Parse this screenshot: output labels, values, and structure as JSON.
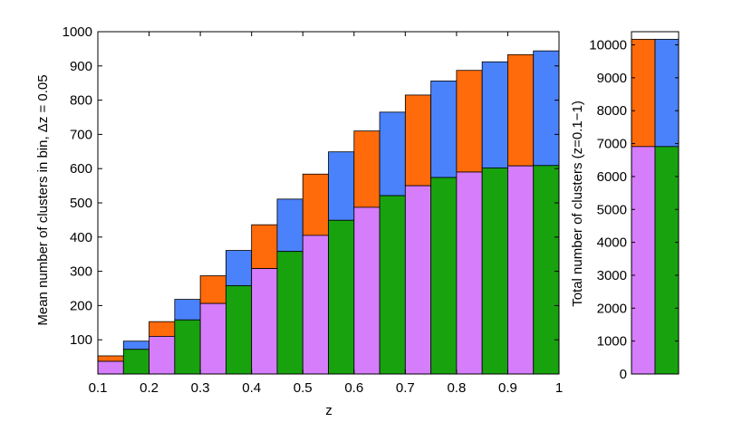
{
  "colors": {
    "violet": "#d57dfa",
    "green": "#18a20e",
    "orange": "#ff6a0a",
    "blue": "#4a82fb"
  },
  "chart_data": [
    {
      "type": "bar",
      "stacked": true,
      "xlabel": "z",
      "ylabel": "Mean number of clusters in bin, Δz = 0.05",
      "xlim": [
        0.1,
        1.0
      ],
      "ylim": [
        0,
        1000
      ],
      "xticks": [
        "0.1",
        "0.2",
        "0.3",
        "0.4",
        "0.5",
        "0.6",
        "0.7",
        "0.8",
        "0.9",
        "1"
      ],
      "yticks": [
        "100",
        "200",
        "300",
        "400",
        "500",
        "600",
        "700",
        "800",
        "900",
        "1000"
      ],
      "bin_width": 0.05,
      "bins": [
        {
          "x0": 0.1,
          "x1": 0.15,
          "bottom": 37,
          "top": 53,
          "bottom_color": "violet",
          "top_color": "orange"
        },
        {
          "x0": 0.15,
          "x1": 0.2,
          "bottom": 72,
          "top": 96,
          "bottom_color": "green",
          "top_color": "blue"
        },
        {
          "x0": 0.2,
          "x1": 0.25,
          "bottom": 110,
          "top": 153,
          "bottom_color": "violet",
          "top_color": "orange"
        },
        {
          "x0": 0.25,
          "x1": 0.3,
          "bottom": 158,
          "top": 218,
          "bottom_color": "green",
          "top_color": "blue"
        },
        {
          "x0": 0.3,
          "x1": 0.35,
          "bottom": 206,
          "top": 287,
          "bottom_color": "violet",
          "top_color": "orange"
        },
        {
          "x0": 0.35,
          "x1": 0.4,
          "bottom": 258,
          "top": 361,
          "bottom_color": "green",
          "top_color": "blue"
        },
        {
          "x0": 0.4,
          "x1": 0.45,
          "bottom": 308,
          "top": 436,
          "bottom_color": "violet",
          "top_color": "orange"
        },
        {
          "x0": 0.45,
          "x1": 0.5,
          "bottom": 358,
          "top": 511,
          "bottom_color": "green",
          "top_color": "blue"
        },
        {
          "x0": 0.5,
          "x1": 0.55,
          "bottom": 405,
          "top": 584,
          "bottom_color": "violet",
          "top_color": "orange"
        },
        {
          "x0": 0.55,
          "x1": 0.6,
          "bottom": 449,
          "top": 649,
          "bottom_color": "green",
          "top_color": "blue"
        },
        {
          "x0": 0.6,
          "x1": 0.65,
          "bottom": 487,
          "top": 710,
          "bottom_color": "violet",
          "top_color": "orange"
        },
        {
          "x0": 0.65,
          "x1": 0.7,
          "bottom": 521,
          "top": 765,
          "bottom_color": "green",
          "top_color": "blue"
        },
        {
          "x0": 0.7,
          "x1": 0.75,
          "bottom": 550,
          "top": 815,
          "bottom_color": "violet",
          "top_color": "orange"
        },
        {
          "x0": 0.75,
          "x1": 0.8,
          "bottom": 574,
          "top": 856,
          "bottom_color": "green",
          "top_color": "blue"
        },
        {
          "x0": 0.8,
          "x1": 0.85,
          "bottom": 590,
          "top": 887,
          "bottom_color": "violet",
          "top_color": "orange"
        },
        {
          "x0": 0.85,
          "x1": 0.9,
          "bottom": 602,
          "top": 912,
          "bottom_color": "green",
          "top_color": "blue"
        },
        {
          "x0": 0.9,
          "x1": 0.95,
          "bottom": 608,
          "top": 933,
          "bottom_color": "violet",
          "top_color": "orange"
        },
        {
          "x0": 0.95,
          "x1": 1.0,
          "bottom": 609,
          "top": 944,
          "bottom_color": "green",
          "top_color": "blue"
        }
      ]
    },
    {
      "type": "bar",
      "stacked": true,
      "xlabel": "",
      "ylabel": "Total number of clusters (z=0.1−1)",
      "ylim": [
        0,
        10400
      ],
      "yticks": [
        "0",
        "1000",
        "2000",
        "3000",
        "4000",
        "5000",
        "6000",
        "7000",
        "8000",
        "9000",
        "10000"
      ],
      "bars": [
        {
          "bottom": 6910,
          "top": 10170,
          "bottom_color": "violet",
          "top_color": "orange"
        },
        {
          "bottom": 6910,
          "top": 10170,
          "bottom_color": "green",
          "top_color": "blue"
        }
      ]
    }
  ]
}
